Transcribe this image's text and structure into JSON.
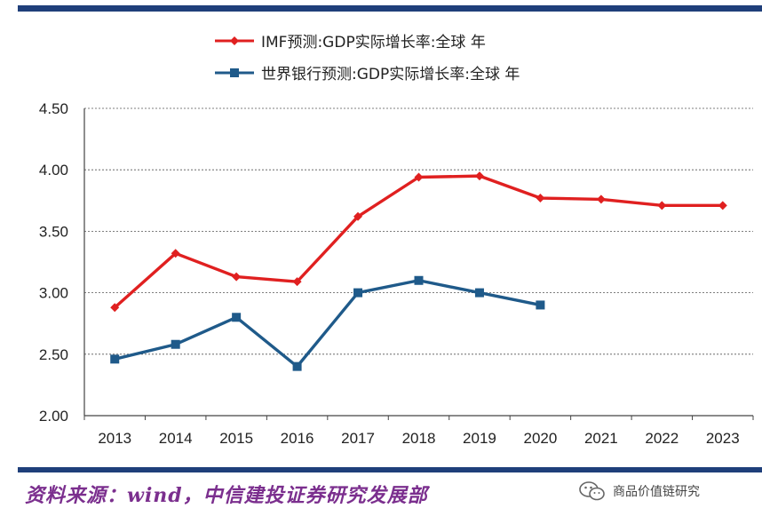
{
  "chart_data": {
    "type": "line",
    "categories": [
      "2013",
      "2014",
      "2015",
      "2016",
      "2017",
      "2018",
      "2019",
      "2020",
      "2021",
      "2022",
      "2023"
    ],
    "series": [
      {
        "name": "IMF预测:GDP实际增长率:全球 年",
        "color": "#e02020",
        "marker": "diamond",
        "values": [
          2.88,
          3.32,
          3.13,
          3.09,
          3.62,
          3.94,
          3.95,
          3.77,
          3.76,
          3.71,
          3.71
        ]
      },
      {
        "name": "世界银行预测:GDP实际增长率:全球 年",
        "color": "#1f5a8a",
        "marker": "square",
        "values": [
          2.46,
          2.58,
          2.8,
          2.4,
          3.0,
          3.1,
          3.0,
          2.9,
          null,
          null,
          null
        ]
      }
    ],
    "ylim": [
      2.0,
      4.5
    ],
    "yticks": [
      "2.00",
      "2.50",
      "3.00",
      "3.50",
      "4.00",
      "4.50"
    ],
    "title": "",
    "xlabel": "",
    "ylabel": "",
    "grid": true,
    "legend": "top-center"
  },
  "footer": {
    "source": "资料来源：wind，中信建投证券研究发展部",
    "account": "商品价值链研究"
  },
  "colors": {
    "rule": "#1f3f7a",
    "grid": "#555555"
  }
}
